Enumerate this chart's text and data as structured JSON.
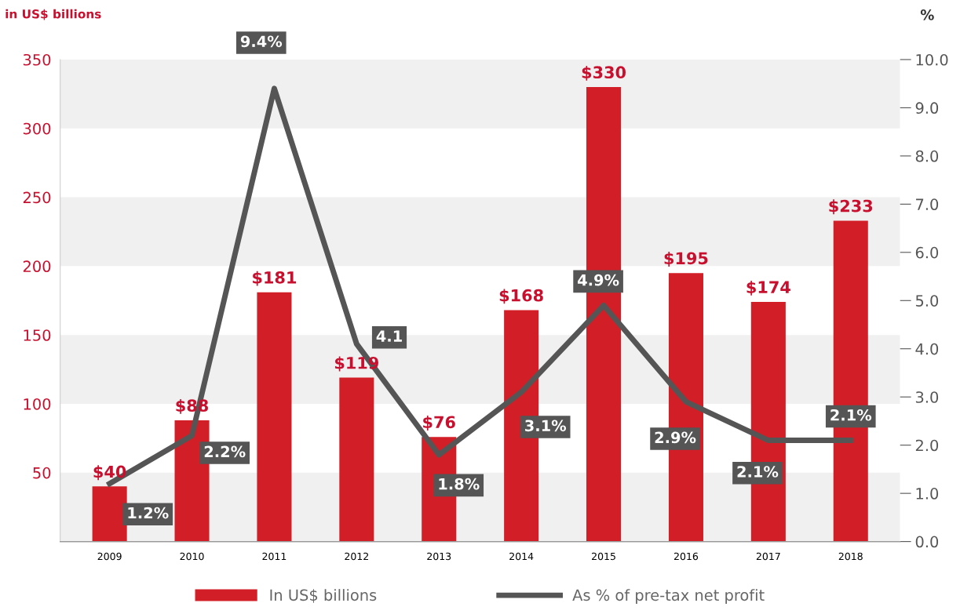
{
  "chart_data": {
    "type": "bar",
    "ylabel": "in US$ billions",
    "y2label": "%",
    "categories": [
      "2009",
      "2010",
      "2011",
      "2012",
      "2013",
      "2014",
      "2015",
      "2016",
      "2017",
      "2018"
    ],
    "series": [
      {
        "name": "In US$ billions",
        "color": "#d21f27",
        "values": [
          40,
          88,
          181,
          119,
          76,
          168,
          330,
          195,
          174,
          233
        ],
        "value_labels": [
          "$40",
          "$88",
          "$181",
          "$119",
          "$76",
          "$168",
          "$330",
          "$195",
          "$174",
          "$233"
        ]
      },
      {
        "name": "As % of pre-tax net profit",
        "type": "line",
        "axis": "y2",
        "color": "#555555",
        "values": [
          1.2,
          2.2,
          9.4,
          4.1,
          1.8,
          3.1,
          4.9,
          2.9,
          2.1,
          2.1
        ],
        "value_labels": [
          "1.2%",
          "2.2%",
          "9.4%",
          "4.1",
          "1.8%",
          "3.1%",
          "4.9%",
          "2.9%",
          "2.1%",
          "2.1%"
        ]
      }
    ],
    "ylim": [
      0,
      350
    ],
    "yticks": [
      50,
      100,
      150,
      200,
      250,
      300,
      350
    ],
    "y2lim": [
      0,
      10
    ],
    "y2ticks": [
      {
        "value": 0,
        "label": "0.0"
      },
      {
        "value": 1,
        "label": "1.0"
      },
      {
        "value": 2,
        "label": "2.0"
      },
      {
        "value": 3,
        "label": "3.0"
      },
      {
        "value": 4,
        "label": "4.0"
      },
      {
        "value": 5,
        "label": "5.0"
      },
      {
        "value": 6,
        "label": "6.0"
      },
      {
        "value": 7,
        "label": "7.0"
      },
      {
        "value": 8,
        "label": "8.0"
      },
      {
        "value": 9,
        "label": "9.0"
      },
      {
        "value": 10,
        "label": "10.0"
      }
    ],
    "bands": [
      {
        "axis": "y",
        "from": 0,
        "to": 50,
        "color": "#f0f0f0"
      },
      {
        "axis": "y",
        "from": 100,
        "to": 150,
        "color": "#f0f0f0"
      },
      {
        "axis": "y",
        "from": 200,
        "to": 250,
        "color": "#f0f0f0"
      },
      {
        "axis": "y",
        "from": 300,
        "to": 350,
        "color": "#f0f0f0"
      }
    ],
    "legend": "bottom",
    "grid": false
  }
}
